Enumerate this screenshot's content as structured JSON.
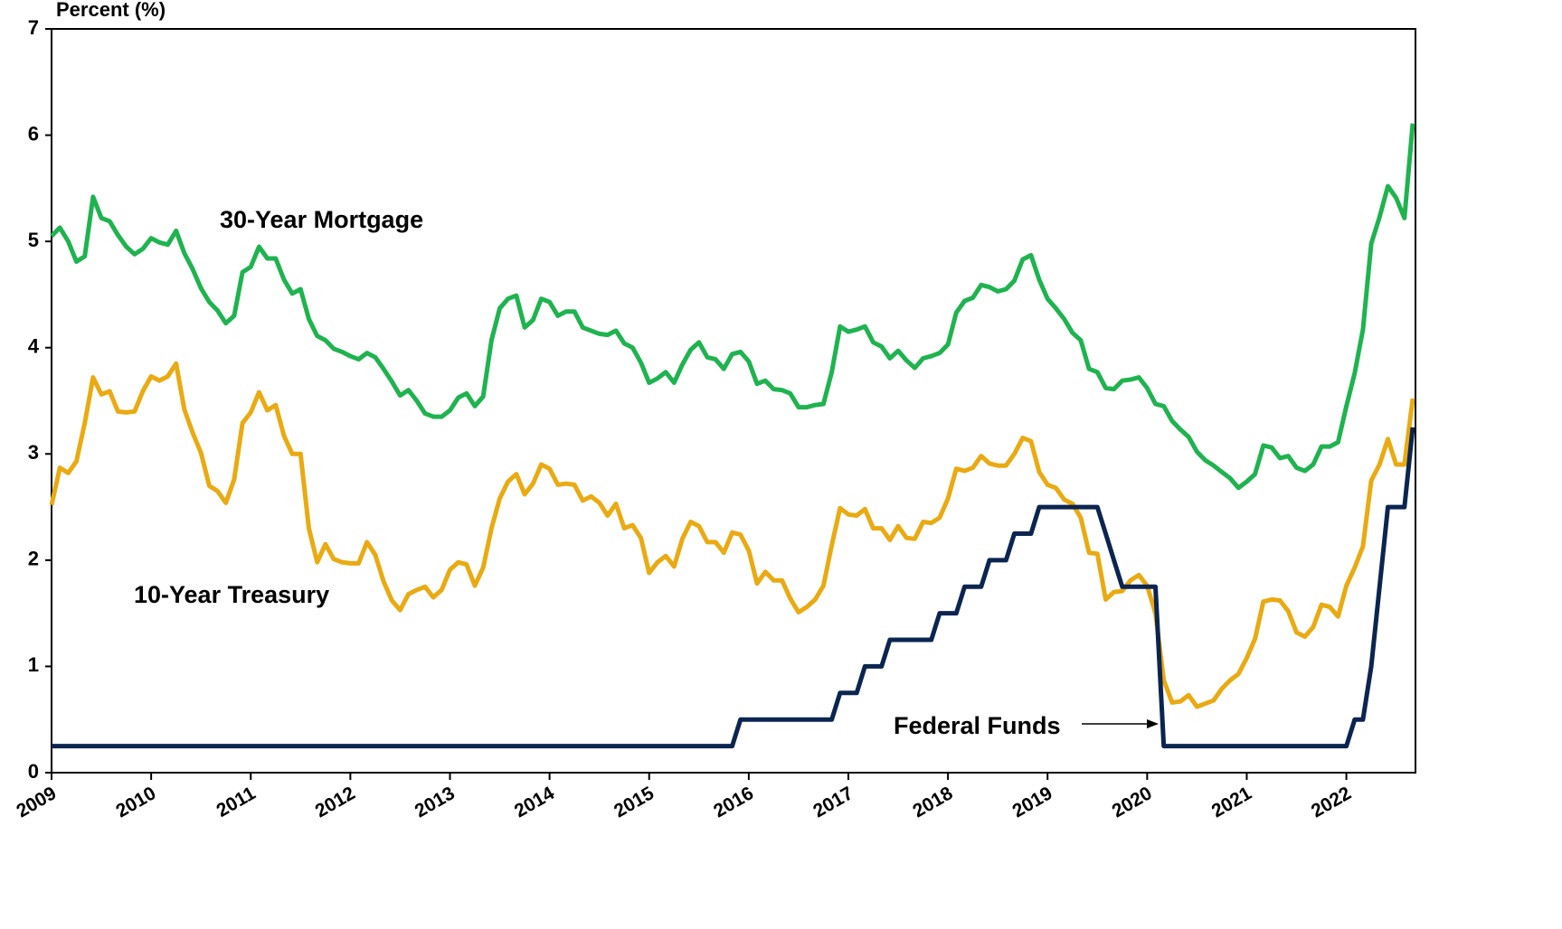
{
  "chart_data": {
    "type": "line",
    "y_label": "Percent (%)",
    "categories": [
      "2009",
      null,
      null,
      null,
      null,
      null,
      null,
      null,
      null,
      null,
      null,
      null,
      "2010",
      null,
      null,
      null,
      null,
      null,
      null,
      null,
      null,
      null,
      null,
      null,
      "2011",
      null,
      null,
      null,
      null,
      null,
      null,
      null,
      null,
      null,
      null,
      null,
      "2012",
      null,
      null,
      null,
      null,
      null,
      null,
      null,
      null,
      null,
      null,
      null,
      "2013",
      null,
      null,
      null,
      null,
      null,
      null,
      null,
      null,
      null,
      null,
      null,
      "2014",
      null,
      null,
      null,
      null,
      null,
      null,
      null,
      null,
      null,
      null,
      null,
      "2015",
      null,
      null,
      null,
      null,
      null,
      null,
      null,
      null,
      null,
      null,
      null,
      "2016",
      null,
      null,
      null,
      null,
      null,
      null,
      null,
      null,
      null,
      null,
      null,
      "2017",
      null,
      null,
      null,
      null,
      null,
      null,
      null,
      null,
      null,
      null,
      null,
      "2018",
      null,
      null,
      null,
      null,
      null,
      null,
      null,
      null,
      null,
      null,
      null,
      "2019",
      null,
      null,
      null,
      null,
      null,
      null,
      null,
      null,
      null,
      null,
      null,
      "2020",
      null,
      null,
      null,
      null,
      null,
      null,
      null,
      null,
      null,
      null,
      null,
      "2021",
      null,
      null,
      null,
      null,
      null,
      null,
      null,
      null,
      null,
      null,
      null,
      "2022",
      null,
      null,
      null,
      null,
      null,
      null,
      null,
      null
    ],
    "ylim": [
      0,
      7
    ],
    "yticks": [
      0,
      1,
      2,
      3,
      4,
      5,
      6,
      7
    ],
    "series": [
      {
        "name": "30-Year Mortgage",
        "color": "#1fb34f",
        "values": [
          5.05,
          5.13,
          5.0,
          4.81,
          4.86,
          5.42,
          5.22,
          5.19,
          5.06,
          4.95,
          4.88,
          4.93,
          5.03,
          4.99,
          4.97,
          5.1,
          4.89,
          4.74,
          4.56,
          4.43,
          4.35,
          4.23,
          4.3,
          4.71,
          4.76,
          4.95,
          4.84,
          4.84,
          4.64,
          4.51,
          4.55,
          4.27,
          4.11,
          4.07,
          3.99,
          3.96,
          3.92,
          3.89,
          3.95,
          3.91,
          3.8,
          3.68,
          3.55,
          3.6,
          3.5,
          3.38,
          3.35,
          3.35,
          3.41,
          3.53,
          3.57,
          3.45,
          3.54,
          4.07,
          4.37,
          4.46,
          4.49,
          4.19,
          4.26,
          4.46,
          4.43,
          4.3,
          4.34,
          4.34,
          4.19,
          4.16,
          4.13,
          4.12,
          4.16,
          4.04,
          4.0,
          3.86,
          3.67,
          3.71,
          3.77,
          3.67,
          3.84,
          3.98,
          4.05,
          3.91,
          3.89,
          3.8,
          3.94,
          3.96,
          3.87,
          3.66,
          3.69,
          3.61,
          3.6,
          3.57,
          3.44,
          3.44,
          3.46,
          3.47,
          3.77,
          4.2,
          4.15,
          4.17,
          4.2,
          4.05,
          4.01,
          3.9,
          3.97,
          3.88,
          3.81,
          3.9,
          3.92,
          3.95,
          4.03,
          4.33,
          4.44,
          4.47,
          4.59,
          4.57,
          4.53,
          4.55,
          4.63,
          4.83,
          4.87,
          4.64,
          4.46,
          4.37,
          4.27,
          4.14,
          4.07,
          3.8,
          3.77,
          3.62,
          3.61,
          3.69,
          3.7,
          3.72,
          3.62,
          3.47,
          3.45,
          3.31,
          3.23,
          3.16,
          3.02,
          2.94,
          2.89,
          2.83,
          2.77,
          2.68,
          2.74,
          2.81,
          3.08,
          3.06,
          2.96,
          2.98,
          2.87,
          2.84,
          2.9,
          3.07,
          3.07,
          3.11,
          3.45,
          3.76,
          4.17,
          4.98,
          5.23,
          5.52,
          5.41,
          5.22,
          6.11
        ]
      },
      {
        "name": "10-Year Treasury",
        "color": "#e9aa12",
        "values": [
          2.52,
          2.87,
          2.82,
          2.93,
          3.29,
          3.72,
          3.56,
          3.59,
          3.4,
          3.39,
          3.4,
          3.59,
          3.73,
          3.69,
          3.73,
          3.85,
          3.42,
          3.2,
          3.01,
          2.7,
          2.65,
          2.54,
          2.76,
          3.29,
          3.39,
          3.58,
          3.41,
          3.46,
          3.17,
          3.0,
          3.0,
          2.3,
          1.98,
          2.15,
          2.01,
          1.98,
          1.97,
          1.97,
          2.17,
          2.05,
          1.8,
          1.62,
          1.53,
          1.68,
          1.72,
          1.75,
          1.65,
          1.72,
          1.91,
          1.98,
          1.96,
          1.76,
          1.93,
          2.3,
          2.58,
          2.74,
          2.81,
          2.62,
          2.72,
          2.9,
          2.86,
          2.71,
          2.72,
          2.71,
          2.56,
          2.6,
          2.54,
          2.42,
          2.53,
          2.3,
          2.33,
          2.21,
          1.88,
          1.98,
          2.04,
          1.94,
          2.2,
          2.36,
          2.32,
          2.17,
          2.17,
          2.07,
          2.26,
          2.24,
          2.09,
          1.78,
          1.89,
          1.81,
          1.81,
          1.64,
          1.51,
          1.56,
          1.63,
          1.76,
          2.14,
          2.49,
          2.43,
          2.42,
          2.48,
          2.3,
          2.3,
          2.19,
          2.32,
          2.21,
          2.2,
          2.36,
          2.35,
          2.4,
          2.58,
          2.86,
          2.84,
          2.87,
          2.98,
          2.91,
          2.89,
          2.89,
          3.0,
          3.15,
          3.12,
          2.83,
          2.71,
          2.68,
          2.57,
          2.53,
          2.4,
          2.07,
          2.06,
          1.63,
          1.7,
          1.71,
          1.81,
          1.86,
          1.76,
          1.5,
          0.87,
          0.66,
          0.67,
          0.73,
          0.62,
          0.65,
          0.68,
          0.79,
          0.87,
          0.93,
          1.08,
          1.26,
          1.61,
          1.63,
          1.62,
          1.52,
          1.32,
          1.28,
          1.37,
          1.58,
          1.56,
          1.47,
          1.76,
          1.93,
          2.13,
          2.75,
          2.9,
          3.14,
          2.9,
          2.9,
          3.52
        ]
      },
      {
        "name": "Federal Funds",
        "color": "#0b2550",
        "values": [
          0.25,
          0.25,
          0.25,
          0.25,
          0.25,
          0.25,
          0.25,
          0.25,
          0.25,
          0.25,
          0.25,
          0.25,
          0.25,
          0.25,
          0.25,
          0.25,
          0.25,
          0.25,
          0.25,
          0.25,
          0.25,
          0.25,
          0.25,
          0.25,
          0.25,
          0.25,
          0.25,
          0.25,
          0.25,
          0.25,
          0.25,
          0.25,
          0.25,
          0.25,
          0.25,
          0.25,
          0.25,
          0.25,
          0.25,
          0.25,
          0.25,
          0.25,
          0.25,
          0.25,
          0.25,
          0.25,
          0.25,
          0.25,
          0.25,
          0.25,
          0.25,
          0.25,
          0.25,
          0.25,
          0.25,
          0.25,
          0.25,
          0.25,
          0.25,
          0.25,
          0.25,
          0.25,
          0.25,
          0.25,
          0.25,
          0.25,
          0.25,
          0.25,
          0.25,
          0.25,
          0.25,
          0.25,
          0.25,
          0.25,
          0.25,
          0.25,
          0.25,
          0.25,
          0.25,
          0.25,
          0.25,
          0.25,
          0.25,
          0.5,
          0.5,
          0.5,
          0.5,
          0.5,
          0.5,
          0.5,
          0.5,
          0.5,
          0.5,
          0.5,
          0.5,
          0.75,
          0.75,
          0.75,
          1.0,
          1.0,
          1.0,
          1.25,
          1.25,
          1.25,
          1.25,
          1.25,
          1.25,
          1.5,
          1.5,
          1.5,
          1.75,
          1.75,
          1.75,
          2.0,
          2.0,
          2.0,
          2.25,
          2.25,
          2.25,
          2.5,
          2.5,
          2.5,
          2.5,
          2.5,
          2.5,
          2.5,
          2.5,
          2.25,
          2.0,
          1.75,
          1.75,
          1.75,
          1.75,
          1.75,
          0.25,
          0.25,
          0.25,
          0.25,
          0.25,
          0.25,
          0.25,
          0.25,
          0.25,
          0.25,
          0.25,
          0.25,
          0.25,
          0.25,
          0.25,
          0.25,
          0.25,
          0.25,
          0.25,
          0.25,
          0.25,
          0.25,
          0.25,
          0.5,
          0.5,
          1.0,
          1.75,
          2.5,
          2.5,
          2.5,
          3.25
        ]
      }
    ]
  }
}
